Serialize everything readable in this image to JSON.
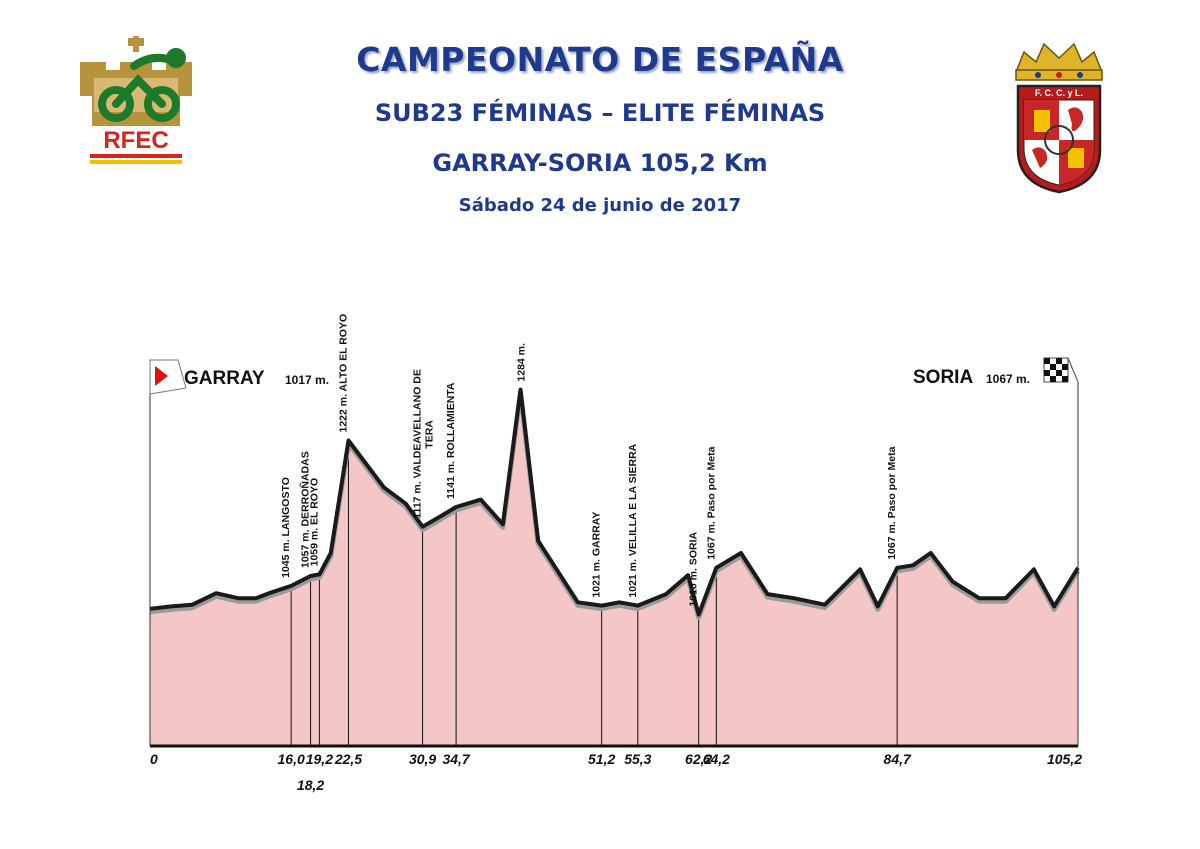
{
  "header": {
    "title": "CAMPEONATO DE ESPAÑA",
    "subtitle": "SUB23 FÉMINAS – ELITE FÉMINAS",
    "route": "GARRAY-SORIA 105,2 Km",
    "date": "Sábado 24 de junio de 2017"
  },
  "logos": {
    "left": {
      "text": "RFEC",
      "icon": "rfec-cyclist-logo"
    },
    "right": {
      "text": "F. C. C. y L.",
      "icon": "fccyl-coat-of-arms"
    }
  },
  "colors": {
    "title": "#1f3a8c",
    "profile_fill": "#f4c6c6",
    "profile_line": "#1a1a1a",
    "start_flag": "#e01010"
  },
  "chart_data": {
    "type": "area",
    "title": "",
    "xlabel": "",
    "ylabel": "",
    "x_unit": "Km",
    "y_unit": "m",
    "xlim": [
      0,
      105.2
    ],
    "ylim": [
      850,
      1320
    ],
    "start": {
      "name": "GARRAY",
      "altitude": "1017 m.",
      "icon": "start-flag-icon"
    },
    "finish": {
      "name": "SORIA",
      "altitude": "1067 m.",
      "icon": "checkered-flag-icon"
    },
    "profile": [
      {
        "x": 0,
        "y": 1017
      },
      {
        "x": 2.4,
        "y": 1020
      },
      {
        "x": 4.8,
        "y": 1022
      },
      {
        "x": 7.5,
        "y": 1036
      },
      {
        "x": 10,
        "y": 1030
      },
      {
        "x": 12,
        "y": 1030
      },
      {
        "x": 13.5,
        "y": 1036
      },
      {
        "x": 16.0,
        "y": 1045
      },
      {
        "x": 18.2,
        "y": 1057
      },
      {
        "x": 19.2,
        "y": 1059
      },
      {
        "x": 20.5,
        "y": 1085
      },
      {
        "x": 22.5,
        "y": 1222
      },
      {
        "x": 26.5,
        "y": 1165
      },
      {
        "x": 29,
        "y": 1145
      },
      {
        "x": 30.9,
        "y": 1117
      },
      {
        "x": 33,
        "y": 1130
      },
      {
        "x": 34.7,
        "y": 1141
      },
      {
        "x": 37.5,
        "y": 1150
      },
      {
        "x": 40,
        "y": 1120
      },
      {
        "x": 42,
        "y": 1284
      },
      {
        "x": 44,
        "y": 1100
      },
      {
        "x": 48.5,
        "y": 1025
      },
      {
        "x": 51.2,
        "y": 1021
      },
      {
        "x": 53.2,
        "y": 1025
      },
      {
        "x": 55.3,
        "y": 1021
      },
      {
        "x": 58.5,
        "y": 1035
      },
      {
        "x": 61,
        "y": 1058
      },
      {
        "x": 62.2,
        "y": 1010
      },
      {
        "x": 64.2,
        "y": 1067
      },
      {
        "x": 67,
        "y": 1085
      },
      {
        "x": 70,
        "y": 1035
      },
      {
        "x": 73,
        "y": 1030
      },
      {
        "x": 76.5,
        "y": 1022
      },
      {
        "x": 80.5,
        "y": 1065
      },
      {
        "x": 82.5,
        "y": 1020
      },
      {
        "x": 84.7,
        "y": 1067
      },
      {
        "x": 86.5,
        "y": 1070
      },
      {
        "x": 88.5,
        "y": 1085
      },
      {
        "x": 91,
        "y": 1050
      },
      {
        "x": 94,
        "y": 1030
      },
      {
        "x": 97,
        "y": 1030
      },
      {
        "x": 100.2,
        "y": 1065
      },
      {
        "x": 102.5,
        "y": 1020
      },
      {
        "x": 105.2,
        "y": 1067
      }
    ],
    "markers": [
      {
        "x": 16.0,
        "label": "1045 m. LANGOSTO"
      },
      {
        "x": 18.2,
        "label": "1057 m. DERROÑADAS"
      },
      {
        "x": 19.2,
        "label": "1059 m. EL ROYO"
      },
      {
        "x": 22.5,
        "label": "1222 m. ALTO EL ROYO"
      },
      {
        "x": 30.9,
        "label": "1117 m. VALDEAVELLANO DE",
        "label2": "TERA"
      },
      {
        "x": 34.7,
        "label": "1141 m. ROLLAMIENTA"
      },
      {
        "x": 51.2,
        "label": "1021 m. GARRAY"
      },
      {
        "x": 55.3,
        "label": "1021 m. VELILLA E LA SIERRA"
      },
      {
        "x": 62.2,
        "label": "1010 m. SORIA"
      },
      {
        "x": 64.2,
        "label": "1067 m. Paso por Meta"
      },
      {
        "x": 84.7,
        "label": "1067 m. Paso por Meta"
      }
    ],
    "peak": {
      "x": 42,
      "label": "1284 m."
    },
    "ticks": [
      {
        "x": 0,
        "label": "0"
      },
      {
        "x": 16.0,
        "label": "16,0"
      },
      {
        "x": 18.2,
        "label": "18,2",
        "low": true
      },
      {
        "x": 19.2,
        "label": "19,2"
      },
      {
        "x": 22.5,
        "label": "22,5"
      },
      {
        "x": 30.9,
        "label": "30,9"
      },
      {
        "x": 34.7,
        "label": "34,7"
      },
      {
        "x": 51.2,
        "label": "51,2"
      },
      {
        "x": 55.3,
        "label": "55,3"
      },
      {
        "x": 62.2,
        "label": "62,2"
      },
      {
        "x": 64.2,
        "label": "64,2"
      },
      {
        "x": 84.7,
        "label": "84,7"
      },
      {
        "x": 105.2,
        "label": "105,2"
      }
    ]
  }
}
